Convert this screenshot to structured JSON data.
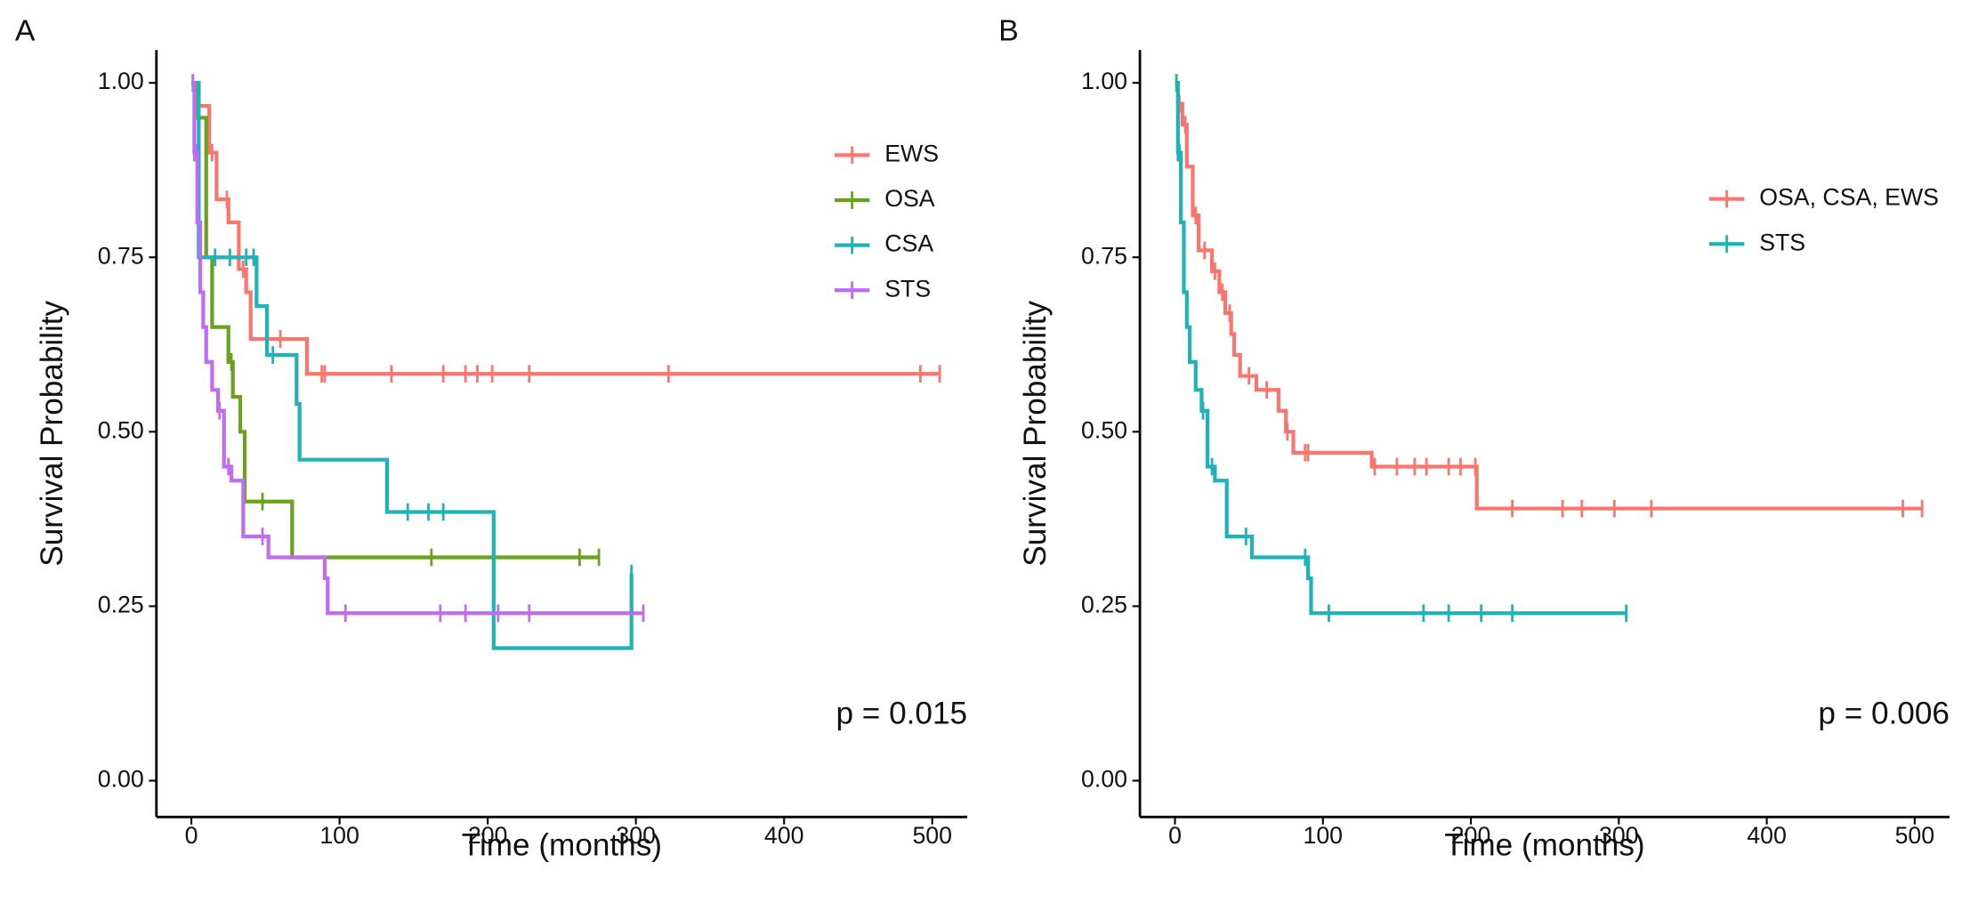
{
  "chart_data": [
    {
      "type": "step",
      "panel": "A",
      "xlabel": "Time (months)",
      "ylabel": "Survival Probability",
      "annotation": "p = 0.015",
      "xlim": [
        -23.6,
        523.6
      ],
      "ylim": [
        -0.052,
        1.047
      ],
      "xticks": [
        0,
        100,
        200,
        300,
        400,
        500
      ],
      "yticks": [
        {
          "value": 0,
          "label": "0.00"
        },
        {
          "value": 0.25,
          "label": "0.25"
        },
        {
          "value": 0.5,
          "label": "0.50"
        },
        {
          "value": 0.75,
          "label": "0.75"
        },
        {
          "value": 1,
          "label": "1.00"
        }
      ],
      "series": [
        {
          "name": "EWS",
          "color": "#f8766d",
          "x": [
            0,
            3,
            12,
            17,
            25,
            32,
            37,
            40,
            78,
            505
          ],
          "values": [
            1,
            0.967,
            0.9,
            0.833,
            0.8,
            0.733,
            0.7,
            0.633,
            0.583,
            0.583
          ],
          "censored": [
            14,
            24,
            35,
            60,
            88,
            90,
            135,
            170,
            185,
            193,
            203,
            228,
            322,
            492,
            505
          ]
        },
        {
          "name": "OSA",
          "color": "#6aa11f",
          "x": [
            0,
            3,
            10,
            14,
            25,
            28,
            33,
            36,
            68,
            275
          ],
          "values": [
            1,
            0.95,
            0.75,
            0.65,
            0.6,
            0.55,
            0.5,
            0.4,
            0.32,
            0.32
          ],
          "censored": [
            1,
            27,
            48,
            162,
            262,
            275
          ]
        },
        {
          "name": "CSA",
          "color": "#1fb3b8",
          "x": [
            0,
            5,
            44,
            51,
            71,
            73,
            132,
            204,
            297
          ],
          "values": [
            1,
            0.75,
            0.68,
            0.61,
            0.54,
            0.46,
            0.385,
            0.19,
            0.297
          ],
          "censored": [
            16,
            26,
            37,
            42,
            55,
            146,
            160,
            170,
            297
          ]
        },
        {
          "name": "STS",
          "color": "#c06cf0",
          "x": [
            0,
            2,
            4,
            6,
            8,
            10,
            14,
            18,
            22,
            27,
            35,
            52,
            90,
            92,
            305
          ],
          "values": [
            1,
            0.9,
            0.8,
            0.7,
            0.65,
            0.6,
            0.56,
            0.53,
            0.45,
            0.43,
            0.35,
            0.32,
            0.29,
            0.24,
            0.24
          ],
          "censored": [
            1,
            2,
            3,
            19,
            25,
            48,
            104,
            168,
            185,
            207,
            228,
            305
          ]
        }
      ]
    },
    {
      "type": "step",
      "panel": "B",
      "xlabel": "Time (months)",
      "ylabel": "Survival Probability",
      "annotation": "p = 0.006",
      "xlim": [
        -23.7,
        523.5
      ],
      "ylim": [
        -0.052,
        1.047
      ],
      "xticks": [
        0,
        100,
        200,
        300,
        400,
        500
      ],
      "yticks": [
        {
          "value": 0,
          "label": "0.00"
        },
        {
          "value": 0.25,
          "label": "0.25"
        },
        {
          "value": 0.5,
          "label": "0.50"
        },
        {
          "value": 0.75,
          "label": "0.75"
        },
        {
          "value": 1,
          "label": "1.00"
        }
      ],
      "series": [
        {
          "name": "OSA, CSA, EWS",
          "color": "#f8766d",
          "x": [
            0,
            2,
            5,
            8,
            12,
            16,
            25,
            30,
            34,
            38,
            40,
            44,
            55,
            70,
            75,
            80,
            133,
            204,
            505
          ],
          "values": [
            1,
            0.97,
            0.94,
            0.88,
            0.81,
            0.76,
            0.73,
            0.7,
            0.67,
            0.64,
            0.61,
            0.58,
            0.56,
            0.53,
            0.5,
            0.47,
            0.45,
            0.39,
            0.39
          ],
          "censored": [
            1,
            3,
            7,
            14,
            20,
            27,
            32,
            37,
            50,
            62,
            76,
            88,
            90,
            135,
            150,
            162,
            170,
            185,
            193,
            203,
            228,
            262,
            275,
            297,
            322,
            492,
            505
          ]
        },
        {
          "name": "STS",
          "color": "#1fb3b8",
          "x": [
            0,
            2,
            4,
            6,
            8,
            10,
            14,
            18,
            22,
            27,
            35,
            52,
            90,
            92,
            305
          ],
          "values": [
            1,
            0.9,
            0.8,
            0.7,
            0.65,
            0.6,
            0.56,
            0.53,
            0.45,
            0.43,
            0.35,
            0.32,
            0.29,
            0.24,
            0.24
          ],
          "censored": [
            1,
            2,
            3,
            19,
            25,
            48,
            88,
            104,
            168,
            185,
            207,
            228,
            305
          ]
        }
      ]
    }
  ]
}
